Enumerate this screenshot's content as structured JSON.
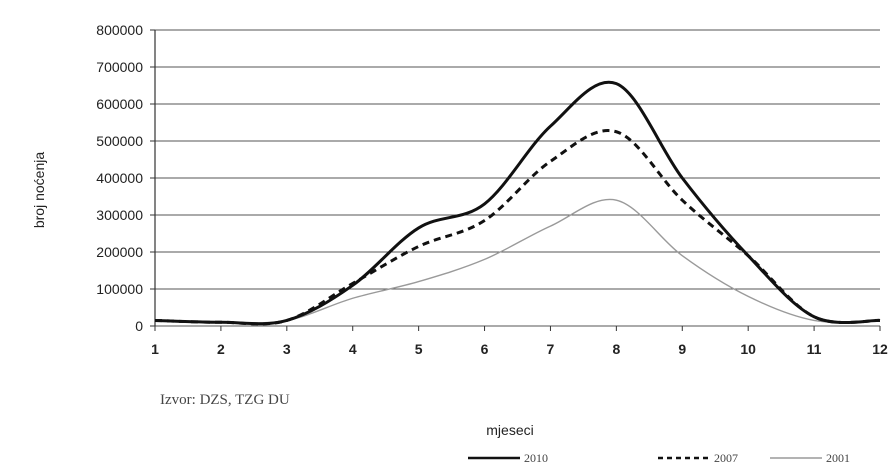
{
  "chart_data": {
    "type": "line",
    "xlabel": "mjeseci",
    "ylabel": "broj noćenja",
    "source": "Izvor: DZS, TZG DU",
    "x": [
      1,
      2,
      3,
      4,
      5,
      6,
      7,
      8,
      9,
      10,
      11,
      12
    ],
    "x_tick_labels": [
      "1",
      "2",
      "3",
      "4",
      "5",
      "6",
      "7",
      "8",
      "9",
      "10",
      "11",
      "12"
    ],
    "y_ticks": [
      0,
      100000,
      200000,
      300000,
      400000,
      500000,
      600000,
      700000,
      800000
    ],
    "y_tick_labels": [
      "0",
      "100000",
      "200000",
      "300000",
      "400000",
      "500000",
      "600000",
      "700000",
      "800000"
    ],
    "ylim": [
      0,
      800000
    ],
    "grid": true,
    "legend_position": "bottom-right",
    "series": [
      {
        "name": "2010",
        "style": "solid",
        "color": "#111111",
        "values": [
          15000,
          10000,
          15000,
          110000,
          265000,
          330000,
          540000,
          655000,
          400000,
          190000,
          25000,
          15000
        ]
      },
      {
        "name": "2007",
        "style": "dashed",
        "color": "#111111",
        "values": [
          15000,
          10000,
          15000,
          115000,
          215000,
          285000,
          445000,
          525000,
          340000,
          190000,
          25000,
          15000
        ]
      },
      {
        "name": "2001",
        "style": "thin",
        "color": "#9a9a9a",
        "values": [
          15000,
          10000,
          15000,
          75000,
          120000,
          180000,
          270000,
          340000,
          190000,
          80000,
          15000,
          15000
        ]
      }
    ]
  }
}
